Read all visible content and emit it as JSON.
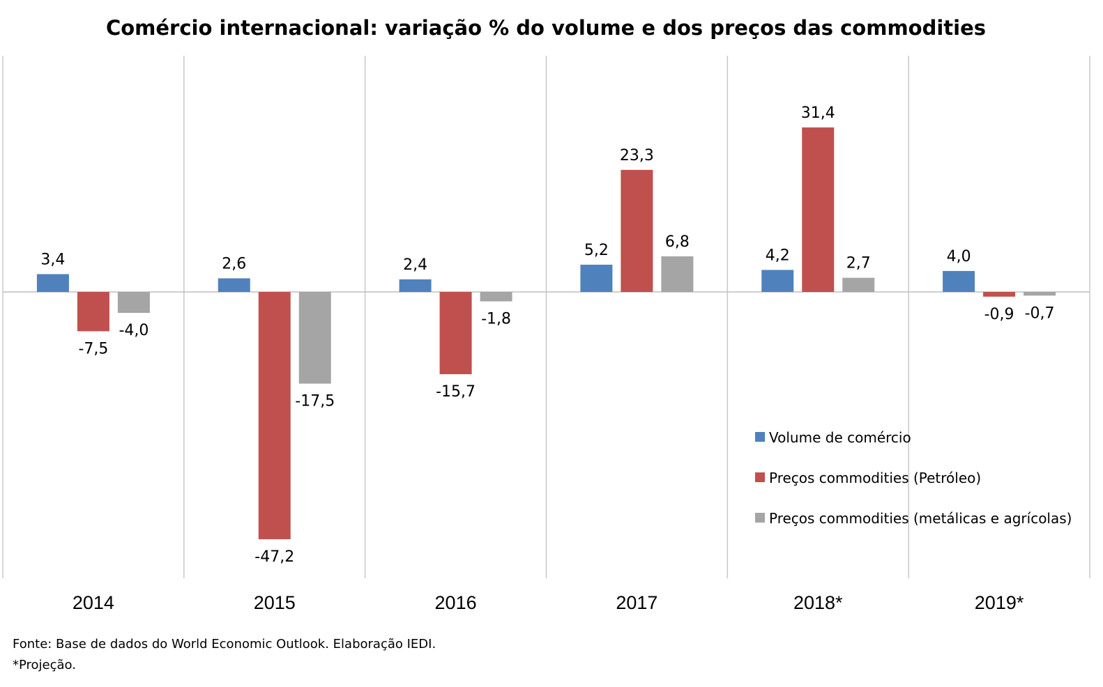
{
  "chart_data": {
    "type": "bar",
    "title": "Comércio internacional: variação % do volume e dos preços das commodities",
    "categories": [
      "2014",
      "2015",
      "2016",
      "2017",
      "2018*",
      "2019*"
    ],
    "series": [
      {
        "name": "Volume de comércio",
        "color": "#4F81BD",
        "values": [
          3.4,
          2.6,
          2.4,
          5.2,
          4.2,
          4.0
        ],
        "labels": [
          "3,4",
          "2,6",
          "2,4",
          "5,2",
          "4,2",
          "4,0"
        ]
      },
      {
        "name": "Preços commodities (Petróleo)",
        "color": "#C0504D",
        "values": [
          -7.5,
          -47.2,
          -15.7,
          23.3,
          31.4,
          -0.9
        ],
        "labels": [
          "-7,5",
          "-47,2",
          "-15,7",
          "23,3",
          "31,4",
          "-0,9"
        ]
      },
      {
        "name": "Preços commodities (metálicas e agrícolas)",
        "color": "#A5A5A5",
        "values": [
          -4.0,
          -17.5,
          -1.8,
          6.8,
          2.7,
          -0.7
        ],
        "labels": [
          "-4,0",
          "-17,5",
          "-1,8",
          "6,8",
          "2,7",
          "-0,7"
        ]
      }
    ],
    "ylim": [
      -55,
      45
    ],
    "legend_position": "bottom-right",
    "grid": "vertical category separators"
  },
  "footer": {
    "source": "Fonte: Base de dados do World Economic Outlook. Elaboração IEDI.",
    "note": "*Projeção."
  }
}
